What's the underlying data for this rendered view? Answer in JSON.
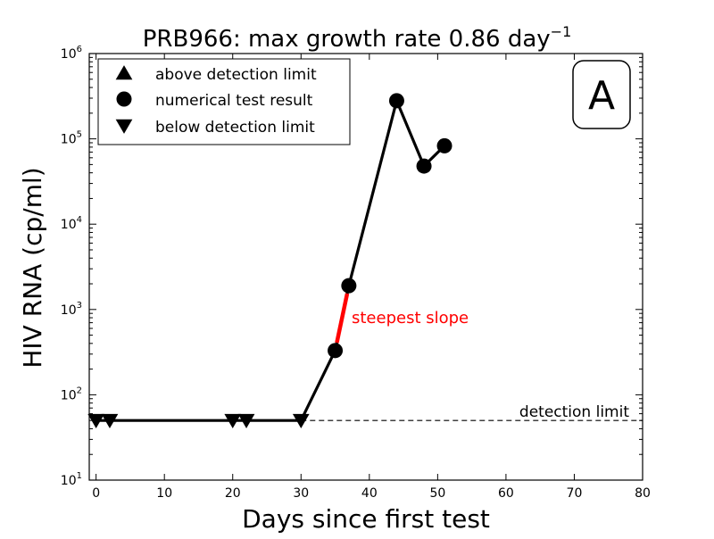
{
  "chart_data": {
    "type": "line",
    "title_main": "PRB966: max growth rate 0.86 day",
    "title_exp": "−1",
    "xlabel": "Days since first test",
    "ylabel": "HIV RNA (cp/ml)",
    "xlim": [
      -1,
      80
    ],
    "ylim": [
      10,
      1000000
    ],
    "y_scale": "log",
    "x_ticks": [
      0,
      10,
      20,
      30,
      40,
      50,
      60,
      70,
      80
    ],
    "y_ticks": [
      {
        "value": 10,
        "base": "10",
        "exp": "1"
      },
      {
        "value": 100,
        "base": "10",
        "exp": "2"
      },
      {
        "value": 1000,
        "base": "10",
        "exp": "3"
      },
      {
        "value": 10000,
        "base": "10",
        "exp": "4"
      },
      {
        "value": 100000,
        "base": "10",
        "exp": "5"
      },
      {
        "value": 1000000,
        "base": "10",
        "exp": "6"
      }
    ],
    "grid": false,
    "legend_position": "top-left",
    "legend": [
      {
        "marker": "triangle-up",
        "label": "above detection limit"
      },
      {
        "marker": "circle",
        "label": "numerical test result"
      },
      {
        "marker": "triangle-down",
        "label": "below detection limit"
      }
    ],
    "panel_label": "A",
    "detection_limit": {
      "value": 50,
      "label": "detection limit",
      "x_start": 30
    },
    "series": [
      {
        "points": [
          {
            "x": 0,
            "y": 50,
            "marker": "triangle-down"
          },
          {
            "x": 2,
            "y": 50,
            "marker": "triangle-down"
          },
          {
            "x": 20,
            "y": 50,
            "marker": "triangle-down"
          },
          {
            "x": 22,
            "y": 50,
            "marker": "triangle-down"
          },
          {
            "x": 30,
            "y": 50,
            "marker": "triangle-down"
          },
          {
            "x": 35,
            "y": 330,
            "marker": "circle"
          },
          {
            "x": 37,
            "y": 1900,
            "marker": "circle"
          },
          {
            "x": 44,
            "y": 280000,
            "marker": "circle"
          },
          {
            "x": 48,
            "y": 48000,
            "marker": "circle"
          },
          {
            "x": 51,
            "y": 83000,
            "marker": "circle"
          }
        ]
      }
    ],
    "steepest_segment": {
      "from_index": 5,
      "to_index": 6,
      "label": "steepest slope",
      "color": "#ff0000"
    },
    "colors": {
      "line": "#000000",
      "highlight": "#ff0000",
      "detection_line": "#000000"
    }
  }
}
